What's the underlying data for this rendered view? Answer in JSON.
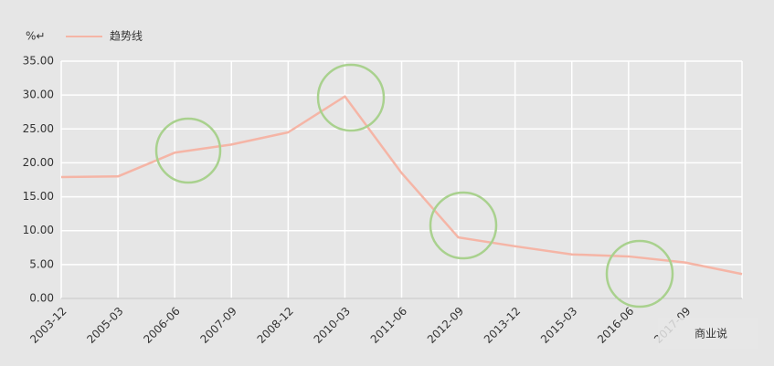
{
  "chart_data": {
    "type": "line",
    "y_label": "%↵",
    "categories": [
      "2003-12",
      "2005-03",
      "2006-06",
      "2007-09",
      "2008-12",
      "2010-03",
      "2011-06",
      "2012-09",
      "2013-12",
      "2015-03",
      "2016-06",
      "2017-09",
      null
    ],
    "series": [
      {
        "name": "趋势线",
        "color": "#f5b5a6",
        "values": [
          17.9,
          18.0,
          21.5,
          22.7,
          24.5,
          29.8,
          18.5,
          9.0,
          7.7,
          6.5,
          6.2,
          5.3,
          3.6
        ]
      }
    ],
    "ylim": [
      0,
      35
    ],
    "yticks": [
      {
        "value": 0,
        "label": "0.00"
      },
      {
        "value": 5,
        "label": "5.00"
      },
      {
        "value": 10,
        "label": "10.00"
      },
      {
        "value": 15,
        "label": "15.00"
      },
      {
        "value": 20,
        "label": "20.00"
      },
      {
        "value": 25,
        "label": "25.00"
      },
      {
        "value": 30,
        "label": "30.00"
      },
      {
        "value": 35,
        "label": "35.00"
      }
    ],
    "grid": true,
    "watermark": "商业说"
  }
}
